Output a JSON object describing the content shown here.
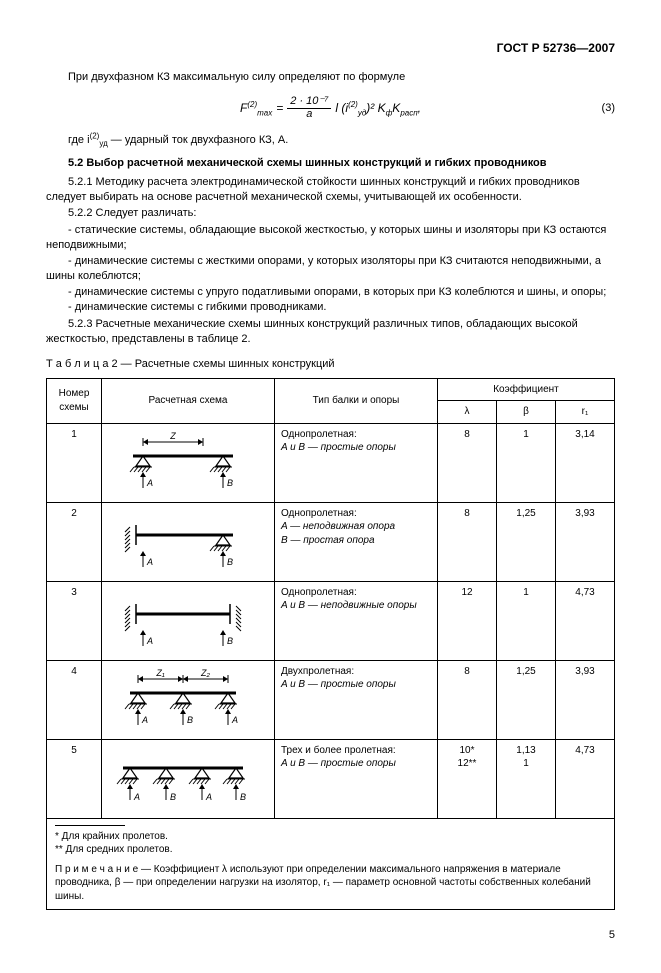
{
  "header": {
    "doc_id": "ГОСТ Р 52736—2007"
  },
  "intro": {
    "line1": "При двухфазном КЗ максимальную силу определяют по формуле",
    "formula_label": "F",
    "formula_sup": "(2)",
    "formula_sub": "max",
    "frac_num": "2 · 10⁻⁷",
    "frac_den": "a",
    "term2": "l (i",
    "term2_sup": "(2)",
    "term2_sub": "уд",
    "term2_tail": ")²  K",
    "kf_sub": "ф",
    "krasp": "K",
    "krasp_sub": "расп",
    "eq_num": "(3)",
    "where": "где i",
    "where_sup": "(2)",
    "where_sub": "уд",
    "where_tail": " — ударный ток двухфазного КЗ, А."
  },
  "section": {
    "title": "5.2  Выбор расчетной механической схемы шинных конструкций и гибких проводников",
    "p521": "5.2.1  Методику расчета электродинамической стойкости шинных конструкций и гибких проводников следует выбирать на основе расчетной механической схемы, учитывающей их особенности.",
    "p522": "5.2.2  Следует различать:",
    "b1": "-  статические системы, обладающие высокой жесткостью, у которых шины и изоляторы при КЗ остаются неподвижными;",
    "b2": "-  динамические системы с жесткими опорами, у которых изоляторы при КЗ считаются неподвижными, а шины колеблются;",
    "b3": "-  динамические системы с упруго податливыми опорами, в которых при КЗ колеблются и шины, и опоры;",
    "b4": "-  динамические системы с гибкими проводниками.",
    "p523": "5.2.3  Расчетные механические схемы шинных конструкций различных типов, обладающих высокой жесткостью, представлены в таблице 2."
  },
  "table": {
    "caption": "Т а б л и ц а   2 — Расчетные схемы шинных конструкций",
    "headers": {
      "num": "Номер схемы",
      "scheme": "Расчетная схема",
      "type": "Тип балки и опоры",
      "coef": "Коэффициент",
      "lambda": "λ",
      "beta": "β",
      "r1": "r₁"
    },
    "rows": [
      {
        "n": "1",
        "type_head": "Однопролетная:",
        "type_body": "A и B — простые опоры",
        "lambda": "8",
        "beta": "1",
        "r1": "3,14"
      },
      {
        "n": "2",
        "type_head": "Однопролетная:",
        "type_body": "A — неподвижная опора\nB — простая опора",
        "lambda": "8",
        "beta": "1,25",
        "r1": "3,93"
      },
      {
        "n": "3",
        "type_head": "Однопролетная:",
        "type_body": "A и B — неподвижные опоры",
        "lambda": "12",
        "beta": "1",
        "r1": "4,73"
      },
      {
        "n": "4",
        "type_head": "Двухпролетная:",
        "type_body": "A и B — простые опоры",
        "lambda": "8",
        "beta": "1,25",
        "r1": "3,93"
      },
      {
        "n": "5",
        "type_head": "Трех и более пролетная:",
        "type_body": "A и B — простые опоры",
        "lambda": "10*\n12**",
        "beta": "1,13\n1",
        "r1": "4,73"
      }
    ],
    "footnotes": {
      "f1": "*  Для крайних пролетов.",
      "f2": "**  Для средних пролетов.",
      "note": "П р и м е ч а н и е — Коэффициент λ используют при определении максимального напряжения в материале проводника, β — при определении нагрузки на изолятор, r₁ — параметр основной частоты собственных колебаний шины."
    }
  },
  "page_number": "5",
  "svg": {
    "stroke": "#000",
    "beam_w": 2.5
  }
}
